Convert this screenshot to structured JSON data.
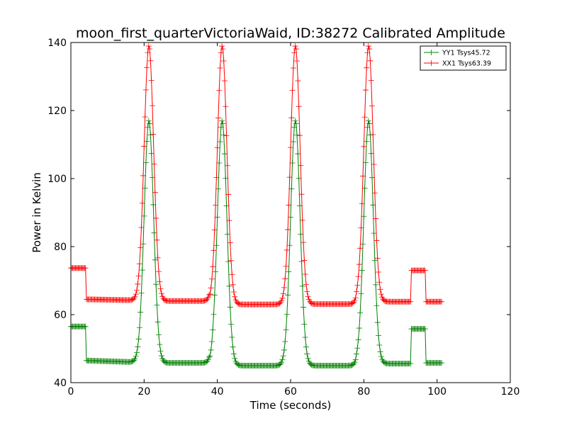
{
  "chart_data": {
    "type": "line",
    "title": "moon_first_quarterVictoriaWaid, ID:38272 Calibrated Amplitude",
    "xlabel": "Time (seconds)",
    "ylabel": "Power in Kelvin",
    "xlim": [
      0,
      120
    ],
    "ylim": [
      40,
      140
    ],
    "xticks": [
      "0",
      "20",
      "40",
      "60",
      "80",
      "100",
      "120"
    ],
    "yticks": [
      "40",
      "60",
      "80",
      "100",
      "120",
      "140"
    ],
    "grid": false,
    "legend_position": "top-right",
    "marker": "+",
    "sample_interval": 0.25,
    "peak_centers": [
      21.3,
      41.3,
      61.3,
      81.3
    ],
    "peak_half_width": 1.3,
    "series": [
      {
        "name": "YY1 Tsys45.72",
        "color": "#008000",
        "peak_value": 117,
        "segments": [
          {
            "x_start": 0,
            "x_end": 4.2,
            "baseline": 56.5
          },
          {
            "x_start": 4.2,
            "x_end": 18.5,
            "baseline": 46.5,
            "baseline_end": 46
          },
          {
            "x_start": 18.5,
            "x_end": 38.0,
            "baseline": 45.8
          },
          {
            "x_start": 38.0,
            "x_end": 58.0,
            "baseline": 45.0
          },
          {
            "x_start": 58.0,
            "x_end": 78.0,
            "baseline": 45.0
          },
          {
            "x_start": 78.0,
            "x_end": 93.0,
            "baseline": 45.6
          },
          {
            "x_start": 93.0,
            "x_end": 97.0,
            "baseline": 55.8
          },
          {
            "x_start": 97.0,
            "x_end": 101.3,
            "baseline": 45.8
          }
        ]
      },
      {
        "name": "XX1 Tsys63.39",
        "color": "#ff0000",
        "peak_value": 139,
        "segments": [
          {
            "x_start": 0,
            "x_end": 4.2,
            "baseline": 73.7
          },
          {
            "x_start": 4.2,
            "x_end": 18.5,
            "baseline": 64.5,
            "baseline_end": 64.2
          },
          {
            "x_start": 18.5,
            "x_end": 38.0,
            "baseline": 64.0
          },
          {
            "x_start": 38.0,
            "x_end": 58.0,
            "baseline": 63.0
          },
          {
            "x_start": 58.0,
            "x_end": 78.0,
            "baseline": 63.1
          },
          {
            "x_start": 78.0,
            "x_end": 93.0,
            "baseline": 63.8
          },
          {
            "x_start": 93.0,
            "x_end": 97.0,
            "baseline": 73.0
          },
          {
            "x_start": 97.0,
            "x_end": 101.3,
            "baseline": 63.8
          }
        ]
      }
    ]
  }
}
